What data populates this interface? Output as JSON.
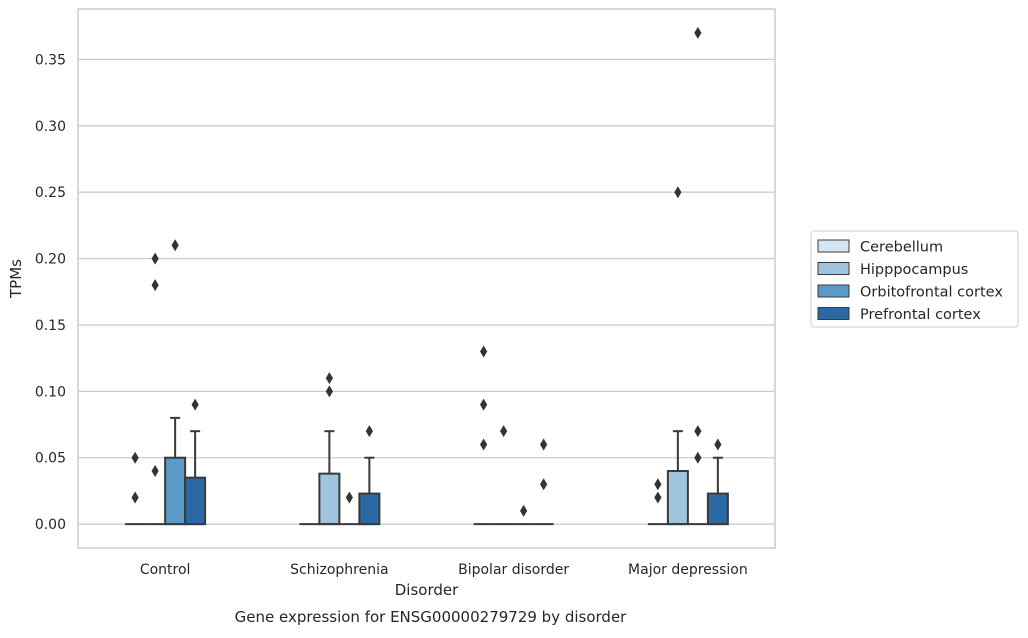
{
  "chart_data": {
    "type": "box",
    "title": "",
    "caption": "Gene expression for ENSG00000279729 by disorder",
    "xlabel": "Disorder",
    "ylabel": "TPMs",
    "ylim": [
      -0.018,
      0.388
    ],
    "yticks": [
      "0.00",
      "0.05",
      "0.10",
      "0.15",
      "0.20",
      "0.25",
      "0.30",
      "0.35"
    ],
    "ytick_values": [
      0,
      0.05,
      0.1,
      0.15,
      0.2,
      0.25,
      0.3,
      0.35
    ],
    "grid": true,
    "legend_position": "right",
    "categories": [
      "Control",
      "Schizophrenia",
      "Bipolar disorder",
      "Major depression"
    ],
    "series": [
      {
        "name": "Cerebellum",
        "color": "#d6e4f1",
        "boxes": [
          {
            "q1": 0,
            "median": 0,
            "q3": 0,
            "whisker_low": 0,
            "whisker_high": 0,
            "outliers": [
              0.02,
              0.05
            ]
          },
          {
            "q1": 0,
            "median": 0,
            "q3": 0,
            "whisker_low": 0,
            "whisker_high": 0,
            "outliers": []
          },
          {
            "q1": 0,
            "median": 0,
            "q3": 0,
            "whisker_low": 0,
            "whisker_high": 0,
            "outliers": [
              0.06,
              0.09,
              0.13
            ]
          },
          {
            "q1": 0,
            "median": 0,
            "q3": 0,
            "whisker_low": 0,
            "whisker_high": 0,
            "outliers": [
              0.02,
              0.03
            ]
          }
        ]
      },
      {
        "name": "Hipppocampus",
        "color": "#9ec4de",
        "boxes": [
          {
            "q1": 0,
            "median": 0,
            "q3": 0,
            "whisker_low": 0,
            "whisker_high": 0,
            "outliers": [
              0.04,
              0.18,
              0.2
            ]
          },
          {
            "q1": 0,
            "median": 0,
            "q3": 0.038,
            "whisker_low": 0,
            "whisker_high": 0.07,
            "outliers": [
              0.1,
              0.11
            ]
          },
          {
            "q1": 0,
            "median": 0,
            "q3": 0,
            "whisker_low": 0,
            "whisker_high": 0,
            "outliers": [
              0.07
            ]
          },
          {
            "q1": 0,
            "median": 0,
            "q3": 0.04,
            "whisker_low": 0,
            "whisker_high": 0.07,
            "outliers": [
              0.25
            ]
          }
        ]
      },
      {
        "name": "Orbitofrontal cortex",
        "color": "#5b9ac9",
        "boxes": [
          {
            "q1": 0,
            "median": 0,
            "q3": 0.05,
            "whisker_low": 0,
            "whisker_high": 0.08,
            "outliers": [
              0.21
            ]
          },
          {
            "q1": 0,
            "median": 0,
            "q3": 0,
            "whisker_low": 0,
            "whisker_high": 0,
            "outliers": [
              0.02
            ]
          },
          {
            "q1": 0,
            "median": 0,
            "q3": 0,
            "whisker_low": 0,
            "whisker_high": 0,
            "outliers": [
              0.01
            ]
          },
          {
            "q1": 0,
            "median": 0,
            "q3": 0,
            "whisker_low": 0,
            "whisker_high": 0,
            "outliers": [
              0.05,
              0.07,
              0.37
            ]
          }
        ]
      },
      {
        "name": "Prefrontal cortex",
        "color": "#2a69a4",
        "boxes": [
          {
            "q1": 0,
            "median": 0,
            "q3": 0.035,
            "whisker_low": 0,
            "whisker_high": 0.07,
            "outliers": [
              0.09
            ]
          },
          {
            "q1": 0,
            "median": 0,
            "q3": 0.023,
            "whisker_low": 0,
            "whisker_high": 0.05,
            "outliers": [
              0.07
            ]
          },
          {
            "q1": 0,
            "median": 0,
            "q3": 0,
            "whisker_low": 0,
            "whisker_high": 0,
            "outliers": [
              0.03,
              0.06
            ]
          },
          {
            "q1": 0,
            "median": 0,
            "q3": 0.023,
            "whisker_low": 0,
            "whisker_high": 0.05,
            "outliers": [
              0.06
            ]
          }
        ]
      }
    ]
  }
}
